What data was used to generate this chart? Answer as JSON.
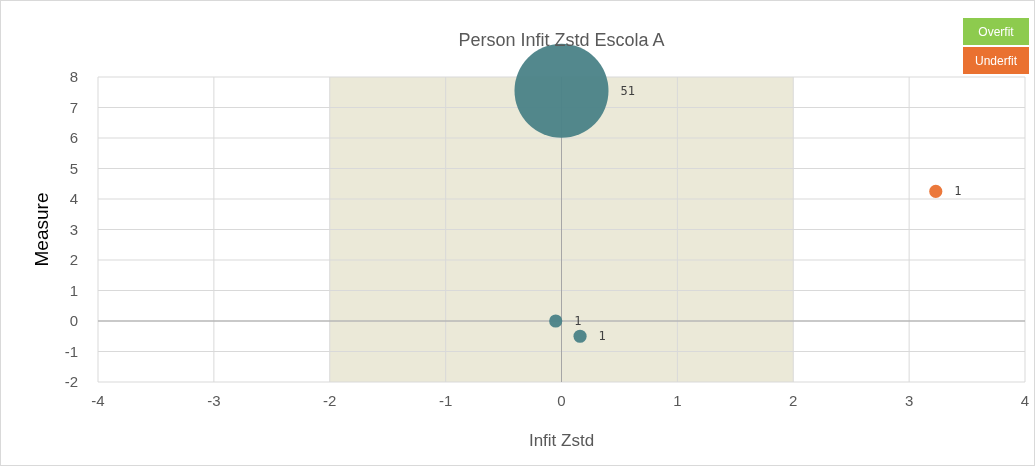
{
  "chart_data": {
    "type": "bubble",
    "title": "Person Infit Zstd Escola A",
    "xlabel": "Infit Zstd",
    "ylabel": "Measure",
    "annotations": [
      "Overfit"
    ],
    "xlim": [
      -4,
      4
    ],
    "xticks": [
      -4,
      -3,
      -2,
      -1,
      0,
      1,
      2,
      3,
      4
    ],
    "ylim": [
      -2,
      8
    ],
    "yticks": [
      -2,
      -1,
      0,
      1,
      2,
      3,
      4,
      5,
      6,
      7,
      8
    ],
    "grid": true,
    "legend": "top right",
    "bands": [
      {
        "axis": "x",
        "from": -2,
        "to": 2,
        "color": "#ebe9d8"
      }
    ],
    "series": [
      {
        "color": "#4a8287",
        "x": [
          0,
          -0.05,
          0.16
        ],
        "values": [
          7.55,
          0,
          -0.5
        ],
        "sizes": [
          51,
          1,
          1
        ],
        "value_labels": [
          "51",
          "1",
          "1"
        ]
      },
      {
        "name": "Underfit",
        "color": "#ea7130",
        "x": [
          3.23
        ],
        "values": [
          4.25
        ],
        "sizes": [
          1
        ],
        "value_labels": [
          "1"
        ]
      }
    ]
  }
}
